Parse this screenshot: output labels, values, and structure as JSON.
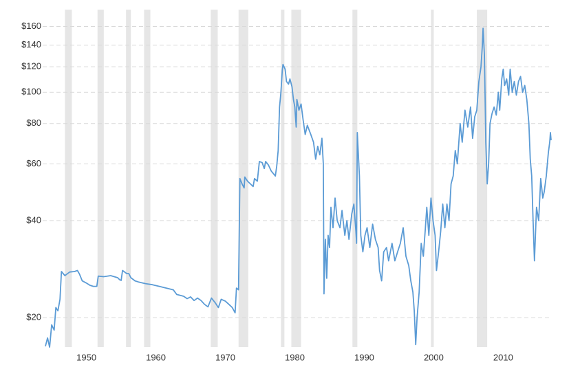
{
  "chart_data": {
    "type": "line",
    "log_y": true,
    "grid": true,
    "xlim": [
      1943.7,
      2016.6
    ],
    "ylim": [
      16.2,
      171
    ],
    "xticks": [
      1950,
      1960,
      1970,
      1980,
      1990,
      2000,
      2010
    ],
    "yticks": [
      {
        "value": 20,
        "label": "$20"
      },
      {
        "value": 40,
        "label": "$40"
      },
      {
        "value": 60,
        "label": "$60"
      },
      {
        "value": 80,
        "label": "$80"
      },
      {
        "value": 100,
        "label": "$100"
      },
      {
        "value": 120,
        "label": "$120"
      },
      {
        "value": 140,
        "label": "$140"
      },
      {
        "value": 160,
        "label": "$160"
      }
    ],
    "recession_color": "#e6e6e6",
    "recessions": [
      [
        1946.9,
        1947.9
      ],
      [
        1951.6,
        1952.5
      ],
      [
        1955.7,
        1956.4
      ],
      [
        1958.3,
        1959.2
      ],
      [
        1967.9,
        1968.9
      ],
      [
        1971.9,
        1973.3
      ],
      [
        1978.0,
        1978.5
      ],
      [
        1979.5,
        1980.9
      ],
      [
        1988.3,
        1989.0
      ],
      [
        1999.6,
        2000.0
      ],
      [
        2006.2,
        2007.7
      ]
    ],
    "series": [
      {
        "color": "#5b9bd5",
        "x": [
          1944.1,
          1944.4,
          1944.7,
          1945.0,
          1945.35,
          1945.6,
          1945.9,
          1946.2,
          1946.4,
          1946.9,
          1947.2,
          1947.6,
          1948.3,
          1948.7,
          1949.0,
          1949.4,
          1950.0,
          1950.5,
          1951.0,
          1951.5,
          1951.7,
          1952.5,
          1953.5,
          1954.5,
          1954.8,
          1955.0,
          1955.2,
          1955.8,
          1956.1,
          1956.4,
          1957.0,
          1957.5,
          1958.5,
          1959.5,
          1960.5,
          1961.5,
          1962.5,
          1963.0,
          1964.0,
          1964.5,
          1965.0,
          1965.5,
          1966.0,
          1966.5,
          1967.0,
          1967.5,
          1968.0,
          1968.5,
          1969.0,
          1969.4,
          1970.0,
          1970.5,
          1971.0,
          1971.4,
          1971.6,
          1971.9,
          1972.1,
          1972.4,
          1972.7,
          1972.8,
          1973.2,
          1973.6,
          1974.0,
          1974.2,
          1974.6,
          1974.9,
          1975.3,
          1975.6,
          1975.8,
          1976.2,
          1976.6,
          1977.2,
          1977.4,
          1977.6,
          1977.8,
          1978.0,
          1978.2,
          1978.3,
          1978.6,
          1978.8,
          1979.1,
          1979.3,
          1979.6,
          1979.8,
          1980.0,
          1980.2,
          1980.3,
          1980.6,
          1980.9,
          1981.2,
          1981.5,
          1981.8,
          1982.3,
          1982.7,
          1983.0,
          1983.3,
          1983.6,
          1983.9,
          1984.1,
          1984.2,
          1984.4,
          1984.6,
          1984.8,
          1985.0,
          1985.2,
          1985.5,
          1985.8,
          1986.1,
          1986.5,
          1986.8,
          1987.2,
          1987.5,
          1987.8,
          1988.2,
          1988.5,
          1988.8,
          1988.9,
          1989.0,
          1989.3,
          1989.5,
          1989.8,
          1990.1,
          1990.4,
          1990.8,
          1991.2,
          1991.6,
          1992.0,
          1992.2,
          1992.5,
          1992.8,
          1993.2,
          1993.5,
          1994.0,
          1994.4,
          1994.8,
          1995.2,
          1995.6,
          1996.0,
          1996.4,
          1996.7,
          1997.0,
          1997.2,
          1997.4,
          1997.6,
          1997.9,
          1998.2,
          1998.5,
          1998.8,
          1999.0,
          1999.3,
          1999.6,
          1999.9,
          2000.2,
          2000.4,
          2000.7,
          2001.0,
          2001.3,
          2001.6,
          2001.9,
          2002.2,
          2002.5,
          2002.8,
          2003.1,
          2003.4,
          2003.8,
          2004.1,
          2004.5,
          2004.9,
          2005.3,
          2005.6,
          2005.9,
          2006.2,
          2006.5,
          2006.8,
          2007.0,
          2007.1,
          2007.3,
          2007.5,
          2007.7,
          2007.9,
          2008.1,
          2008.4,
          2008.7,
          2009.0,
          2009.3,
          2009.5,
          2009.8,
          2010.0,
          2010.2,
          2010.5,
          2010.8,
          2011.0,
          2011.3,
          2011.6,
          2011.9,
          2012.2,
          2012.5,
          2012.8,
          2013.1,
          2013.4,
          2013.7,
          2013.9,
          2014.1,
          2014.3,
          2014.5,
          2014.8,
          2015.1,
          2015.4,
          2015.7,
          2015.9,
          2016.2,
          2016.5,
          2016.7,
          2016.8,
          2016.9
        ],
        "values": [
          16.3,
          17.3,
          16.2,
          19.0,
          18.3,
          21.5,
          21.0,
          22.8,
          27.8,
          27.0,
          27.3,
          27.7,
          27.8,
          28.0,
          27.3,
          26.0,
          25.6,
          25.2,
          25.0,
          25.0,
          26.9,
          26.8,
          27.0,
          26.6,
          26.2,
          26.1,
          28.0,
          27.4,
          27.4,
          26.6,
          26.0,
          25.8,
          25.5,
          25.3,
          25.0,
          24.7,
          24.4,
          23.6,
          23.3,
          22.9,
          23.2,
          22.6,
          23.0,
          22.6,
          22.0,
          21.6,
          23.0,
          22.3,
          21.5,
          22.8,
          22.5,
          22.0,
          21.5,
          20.7,
          24.7,
          24.4,
          54.0,
          52.0,
          50.5,
          54.6,
          53.0,
          52.0,
          51.0,
          54.0,
          53.0,
          61.0,
          60.5,
          58.0,
          61.0,
          59.5,
          57.0,
          55.0,
          59.0,
          66.0,
          90.0,
          100,
          117,
          122,
          118,
          108,
          106,
          110,
          104,
          95,
          90,
          78,
          95,
          88,
          92,
          82,
          74,
          79,
          74,
          70,
          62,
          68,
          64,
          72,
          60,
          23.7,
          35,
          26.5,
          36,
          33,
          44,
          38,
          47,
          40,
          38,
          43,
          36,
          40,
          35,
          42,
          45,
          37,
          34,
          75,
          55,
          36,
          32,
          36,
          38,
          33,
          39,
          35,
          33,
          28,
          26,
          32,
          33,
          30,
          34,
          30,
          32,
          34,
          38,
          31,
          29,
          26,
          24,
          21,
          16.5,
          20,
          24,
          34,
          31,
          38,
          44,
          36,
          47,
          40,
          36,
          28,
          32,
          37,
          45,
          38,
          45,
          40,
          52,
          55,
          66,
          60,
          80,
          70,
          88,
          78,
          90,
          72,
          84,
          88,
          108,
          120,
          140,
          158,
          130,
          70,
          52,
          60,
          80,
          86,
          90,
          85,
          100,
          88,
          110,
          118,
          105,
          110,
          98,
          118,
          100,
          108,
          98,
          108,
          112,
          100,
          105,
          95,
          80,
          62,
          55,
          40,
          30,
          44,
          40,
          54,
          47,
          49,
          55,
          65,
          70,
          75,
          71
        ]
      }
    ]
  }
}
